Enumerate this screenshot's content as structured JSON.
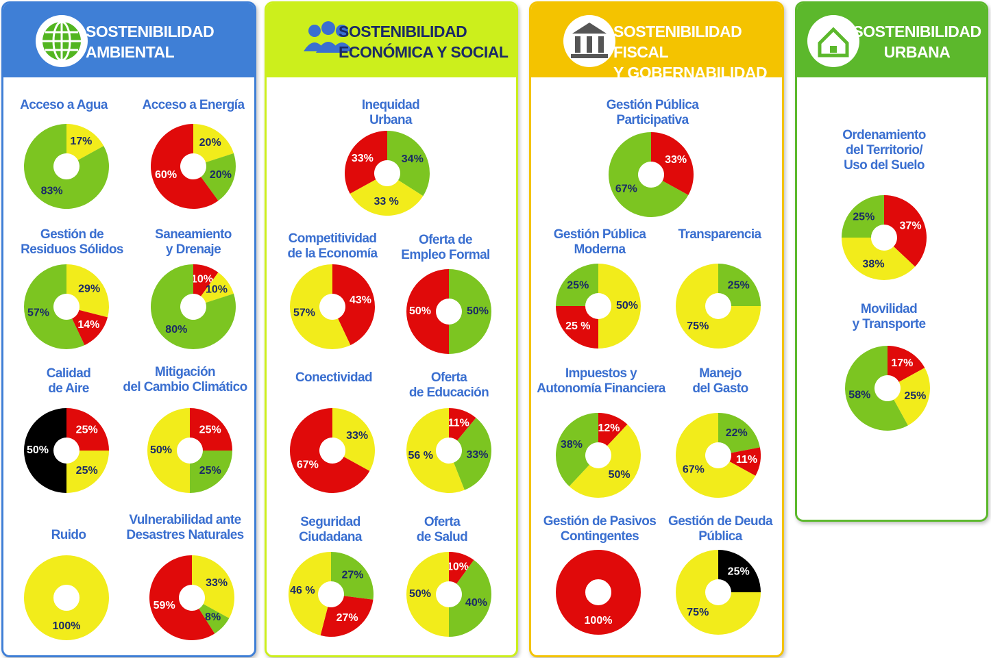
{
  "panels": [
    {
      "title": "SOSTENIBILIDAD\nAMBIENTAL",
      "color": "#3f7fd6"
    },
    {
      "title": "SOSTENIBILIDAD\nECONÓMICA Y SOCIAL",
      "color": "#ccef1c"
    },
    {
      "title": "SOSTENIBILIDAD FISCAL\nY GOBERNABILIDAD",
      "color": "#f4c300"
    },
    {
      "title": "SOSTENIBILIDAD\nURBANA",
      "color": "#5cb82c"
    }
  ],
  "chart_data": [
    {
      "type": "pie",
      "title": "Acceso a Agua",
      "values": [
        17,
        83
      ],
      "value_labels": [
        "17%",
        "83%"
      ],
      "colors": [
        "#f2ec1b",
        "#7cc521"
      ]
    },
    {
      "type": "pie",
      "title": "Acceso a Energía",
      "values": [
        20,
        20,
        60
      ],
      "value_labels": [
        "20%",
        "20%",
        "60%"
      ],
      "colors": [
        "#f2ec1b",
        "#7cc521",
        "#e00a0a"
      ]
    },
    {
      "type": "pie",
      "title": "Gestión de\nResiduos Sólidos",
      "values": [
        29,
        14,
        57
      ],
      "value_labels": [
        "29%",
        "14%",
        "57%"
      ],
      "colors": [
        "#f2ec1b",
        "#e00a0a",
        "#7cc521"
      ]
    },
    {
      "type": "pie",
      "title": "Saneamiento\ny Drenaje",
      "values": [
        10,
        10,
        80
      ],
      "value_labels": [
        "10%",
        "10%",
        "80%"
      ],
      "colors": [
        "#e00a0a",
        "#f2ec1b",
        "#7cc521"
      ]
    },
    {
      "type": "pie",
      "title": "Calidad\nde Aire",
      "values": [
        25,
        25,
        50
      ],
      "value_labels": [
        "25%",
        "25%",
        "50%"
      ],
      "colors": [
        "#e00a0a",
        "#f2ec1b",
        "#000000"
      ]
    },
    {
      "type": "pie",
      "title": "Mitigación\ndel Cambio Climático",
      "values": [
        25,
        25,
        50
      ],
      "value_labels": [
        "25%",
        "25%",
        "50%"
      ],
      "colors": [
        "#e00a0a",
        "#7cc521",
        "#f2ec1b"
      ]
    },
    {
      "type": "pie",
      "title": "Ruido",
      "values": [
        100
      ],
      "value_labels": [
        "100%"
      ],
      "colors": [
        "#f2ec1b"
      ]
    },
    {
      "type": "pie",
      "title": "Vulnerabilidad ante\nDesastres Naturales",
      "values": [
        33,
        8,
        59
      ],
      "value_labels": [
        "33%",
        "8%",
        "59%"
      ],
      "colors": [
        "#f2ec1b",
        "#7cc521",
        "#e00a0a"
      ]
    },
    {
      "type": "pie",
      "title": "Inequidad\nUrbana",
      "values": [
        34,
        33,
        33
      ],
      "value_labels": [
        "34%",
        "33 %",
        "33%"
      ],
      "colors": [
        "#7cc521",
        "#f2ec1b",
        "#e00a0a"
      ]
    },
    {
      "type": "pie",
      "title": "Competitividad\nde la Economía",
      "values": [
        43,
        57
      ],
      "value_labels": [
        "43%",
        "57%"
      ],
      "colors": [
        "#e00a0a",
        "#f2ec1b"
      ]
    },
    {
      "type": "pie",
      "title": "Oferta de\nEmpleo Formal",
      "values": [
        50,
        50
      ],
      "value_labels": [
        "50%",
        "50%"
      ],
      "colors": [
        "#7cc521",
        "#e00a0a"
      ]
    },
    {
      "type": "pie",
      "title": "Conectividad",
      "values": [
        33,
        67
      ],
      "value_labels": [
        "33%",
        "67%"
      ],
      "colors": [
        "#f2ec1b",
        "#e00a0a"
      ]
    },
    {
      "type": "pie",
      "title": "Oferta\nde Educación",
      "values": [
        11,
        33,
        56
      ],
      "value_labels": [
        "11%",
        "33%",
        "56 %"
      ],
      "colors": [
        "#e00a0a",
        "#7cc521",
        "#f2ec1b"
      ]
    },
    {
      "type": "pie",
      "title": "Seguridad\nCiudadana",
      "values": [
        27,
        27,
        46
      ],
      "value_labels": [
        "27%",
        "27%",
        "46 %"
      ],
      "colors": [
        "#7cc521",
        "#e00a0a",
        "#f2ec1b"
      ]
    },
    {
      "type": "pie",
      "title": "Oferta\nde Salud",
      "values": [
        10,
        40,
        50
      ],
      "value_labels": [
        "10%",
        "40%",
        "50%"
      ],
      "colors": [
        "#e00a0a",
        "#7cc521",
        "#f2ec1b"
      ]
    },
    {
      "type": "pie",
      "title": "Gestión Pública\nParticipativa",
      "values": [
        33,
        67
      ],
      "value_labels": [
        "33%",
        "67%"
      ],
      "colors": [
        "#e00a0a",
        "#7cc521"
      ]
    },
    {
      "type": "pie",
      "title": "Gestión Pública\nModerna",
      "values": [
        50,
        25,
        25
      ],
      "value_labels": [
        "50%",
        "25 %",
        "25%"
      ],
      "colors": [
        "#f2ec1b",
        "#e00a0a",
        "#7cc521"
      ]
    },
    {
      "type": "pie",
      "title": "Transparencia",
      "values": [
        25,
        75
      ],
      "value_labels": [
        "25%",
        "75%"
      ],
      "colors": [
        "#7cc521",
        "#f2ec1b"
      ]
    },
    {
      "type": "pie",
      "title": "Impuestos y\nAutonomía Financiera",
      "values": [
        12,
        50,
        38
      ],
      "value_labels": [
        "12%",
        "50%",
        "38%"
      ],
      "colors": [
        "#e00a0a",
        "#f2ec1b",
        "#7cc521"
      ]
    },
    {
      "type": "pie",
      "title": "Manejo\ndel Gasto",
      "values": [
        22,
        11,
        67
      ],
      "value_labels": [
        "22%",
        "11%",
        "67%"
      ],
      "colors": [
        "#7cc521",
        "#e00a0a",
        "#f2ec1b"
      ]
    },
    {
      "type": "pie",
      "title": "Gestión de Pasivos\nContingentes",
      "values": [
        100
      ],
      "value_labels": [
        "100%"
      ],
      "colors": [
        "#e00a0a"
      ]
    },
    {
      "type": "pie",
      "title": "Gestión de Deuda\nPública",
      "values": [
        25,
        75
      ],
      "value_labels": [
        "25%",
        "75%"
      ],
      "colors": [
        "#000000",
        "#f2ec1b"
      ]
    },
    {
      "type": "pie",
      "title": "Ordenamiento\ndel Territorio/\nUso del Suelo",
      "values": [
        37,
        38,
        25
      ],
      "value_labels": [
        "37%",
        "38%",
        "25%"
      ],
      "colors": [
        "#e00a0a",
        "#f2ec1b",
        "#7cc521"
      ]
    },
    {
      "type": "pie",
      "title": "Movilidad\ny Transporte",
      "values": [
        17,
        25,
        58
      ],
      "value_labels": [
        "17%",
        "25%",
        "58%"
      ],
      "colors": [
        "#e00a0a",
        "#f2ec1b",
        "#7cc521"
      ]
    }
  ]
}
